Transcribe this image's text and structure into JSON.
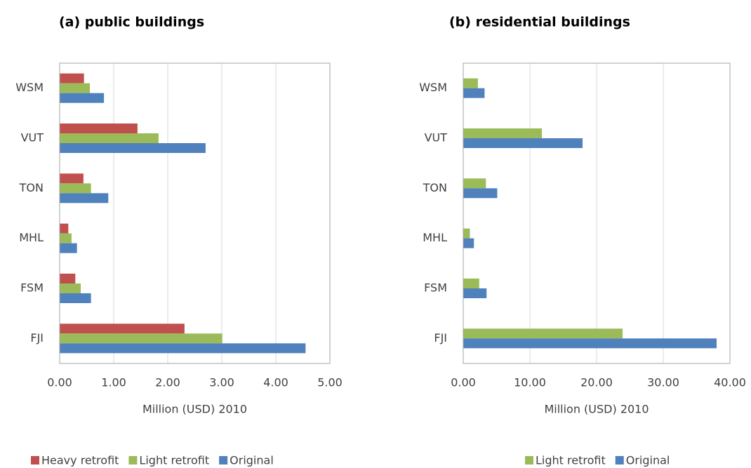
{
  "chart_data": [
    {
      "type": "bar",
      "orientation": "horizontal",
      "title": "(a) public buildings",
      "xlabel": "Million (USD) 2010",
      "categories": [
        "FJI",
        "FSM",
        "MHL",
        "TON",
        "VUT",
        "WSM"
      ],
      "series": [
        {
          "name": "Heavy retrofit",
          "color": "#c0504d",
          "values": [
            2.31,
            0.29,
            0.16,
            0.44,
            1.44,
            0.45
          ]
        },
        {
          "name": "Light retrofit",
          "color": "#9bbb59",
          "values": [
            3.01,
            0.39,
            0.22,
            0.58,
            1.83,
            0.56
          ]
        },
        {
          "name": "Original",
          "color": "#4f81bd",
          "values": [
            4.55,
            0.58,
            0.32,
            0.9,
            2.7,
            0.82
          ]
        }
      ],
      "xlim": [
        0,
        5
      ],
      "xticks": [
        {
          "value": 0,
          "label": "0.00"
        },
        {
          "value": 1,
          "label": "1.00"
        },
        {
          "value": 2,
          "label": "2.00"
        },
        {
          "value": 3,
          "label": "3.00"
        },
        {
          "value": 4,
          "label": "4.00"
        },
        {
          "value": 5,
          "label": "5.00"
        }
      ],
      "grid": true,
      "legend": "bottom"
    },
    {
      "type": "bar",
      "orientation": "horizontal",
      "title": "(b) residential buildings",
      "xlabel": "Million (USD) 2010",
      "categories": [
        "FJI",
        "FSM",
        "MHL",
        "TON",
        "VUT",
        "WSM"
      ],
      "series": [
        {
          "name": "Light retrofit",
          "color": "#9bbb59",
          "values": [
            23.9,
            2.4,
            1.0,
            3.4,
            11.8,
            2.2
          ]
        },
        {
          "name": "Original",
          "color": "#4f81bd",
          "values": [
            38.0,
            3.5,
            1.6,
            5.1,
            17.9,
            3.2
          ]
        }
      ],
      "xlim": [
        0,
        40
      ],
      "xticks": [
        {
          "value": 0,
          "label": "0.00"
        },
        {
          "value": 10,
          "label": "10.00"
        },
        {
          "value": 20,
          "label": "20.00"
        },
        {
          "value": 30,
          "label": "30.00"
        },
        {
          "value": 40,
          "label": "40.00"
        }
      ],
      "grid": true,
      "legend": "bottom"
    }
  ]
}
